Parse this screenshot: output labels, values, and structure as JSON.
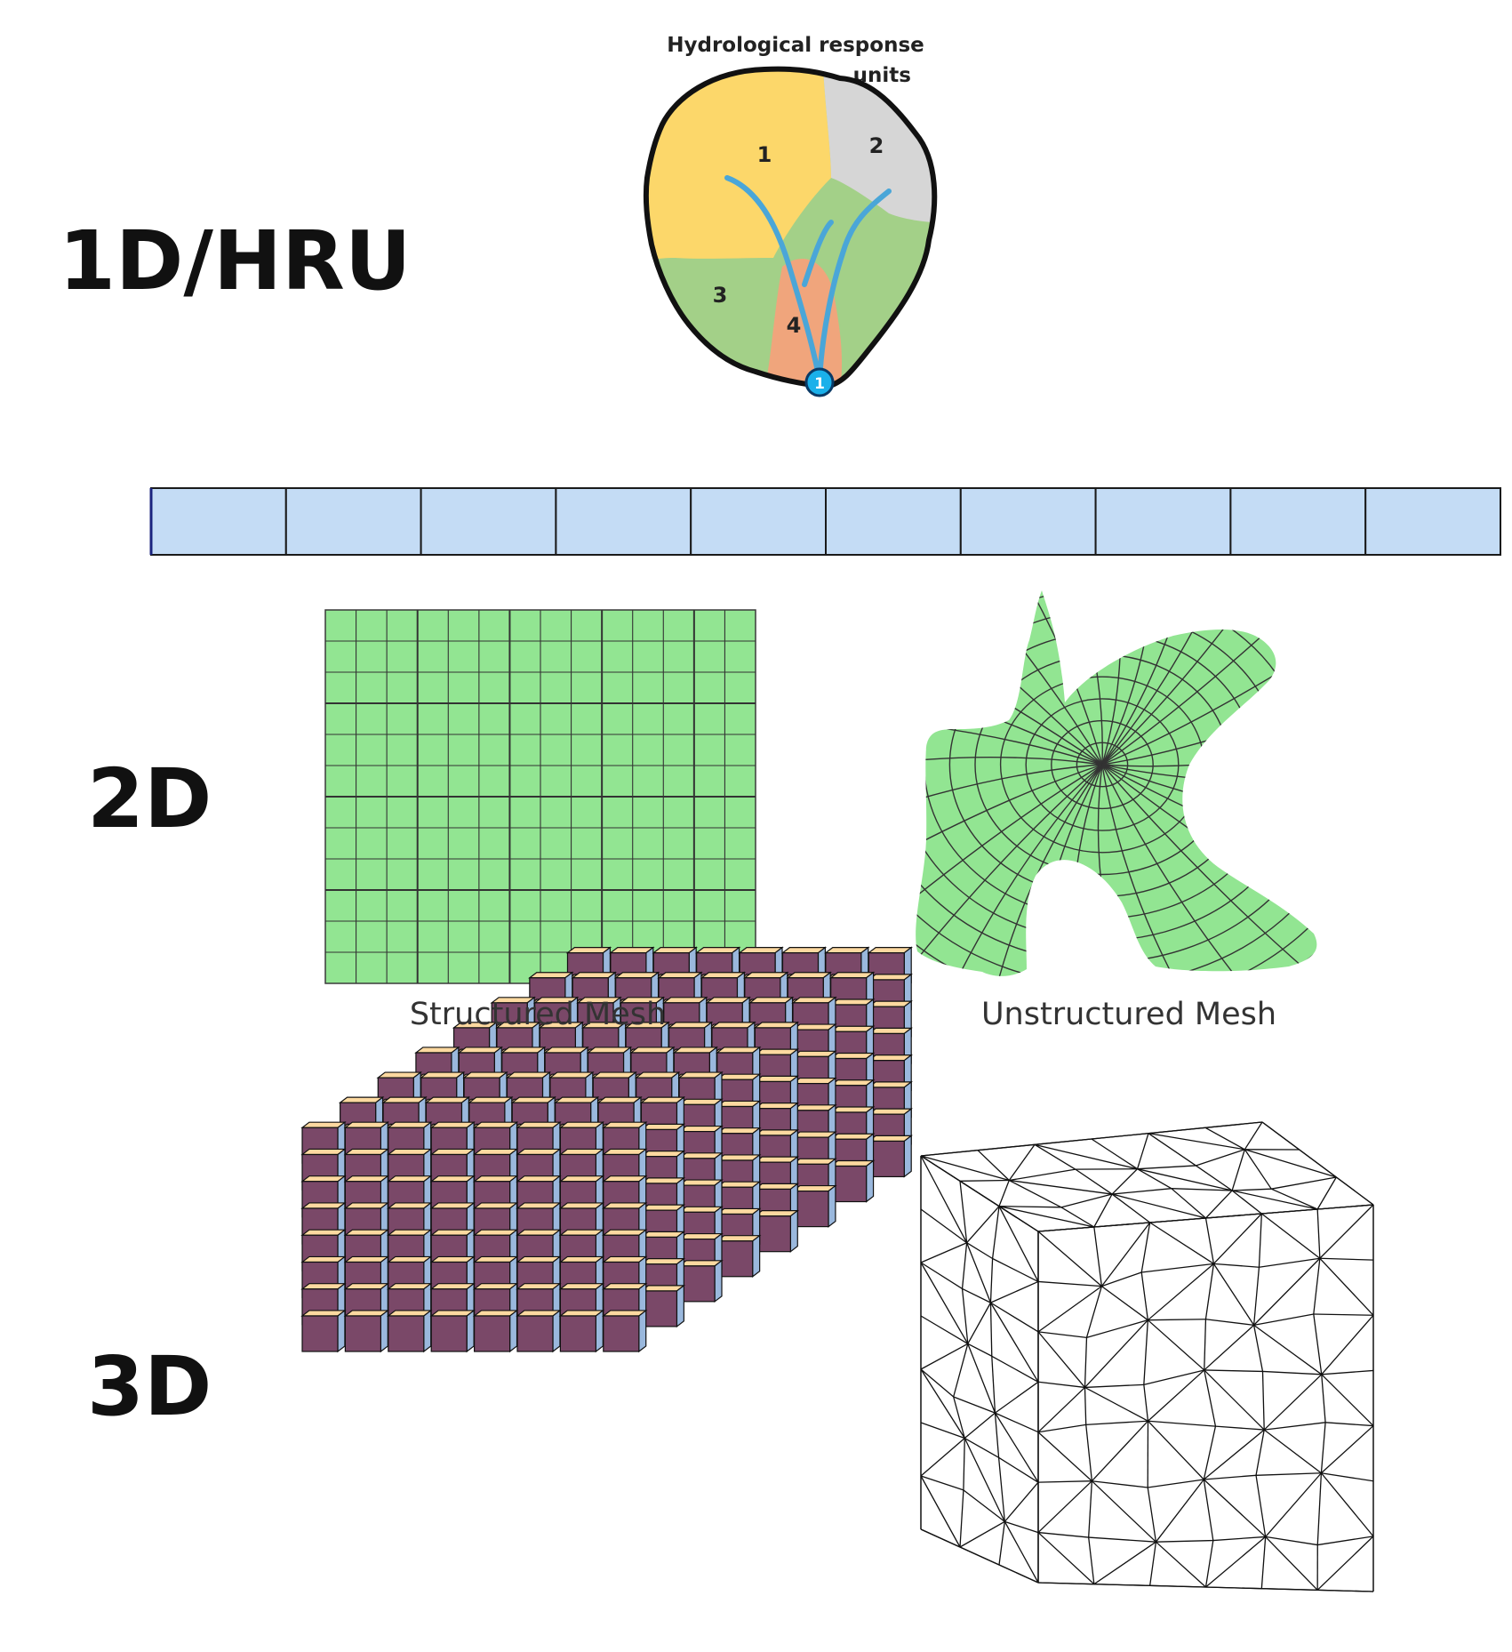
{
  "labels": {
    "one_d": "1D/HRU",
    "two_d": "2D",
    "three_d": "3D"
  },
  "hru": {
    "title_line1": "Hydrological response",
    "title_line2": "units",
    "units": [
      "1",
      "2",
      "3",
      "4"
    ],
    "outlet": "1"
  },
  "captions": {
    "structured": "Structured Mesh",
    "unstructured": "Unstructured Mesh"
  },
  "colors": {
    "unit1": "#fcd76a",
    "unit2": "#d6d6d6",
    "unit3": "#a3d088",
    "unit4": "#f0a57c",
    "river": "#4aa6d8",
    "strip": "#c4dcf5",
    "mesh_green": "#92e592",
    "cube_top": "#fdd9a0",
    "cube_front": "#7a4868",
    "cube_side": "#9ab8dd"
  },
  "strip_cells": 10,
  "structured_grid": {
    "cols": 14,
    "rows": 12
  }
}
